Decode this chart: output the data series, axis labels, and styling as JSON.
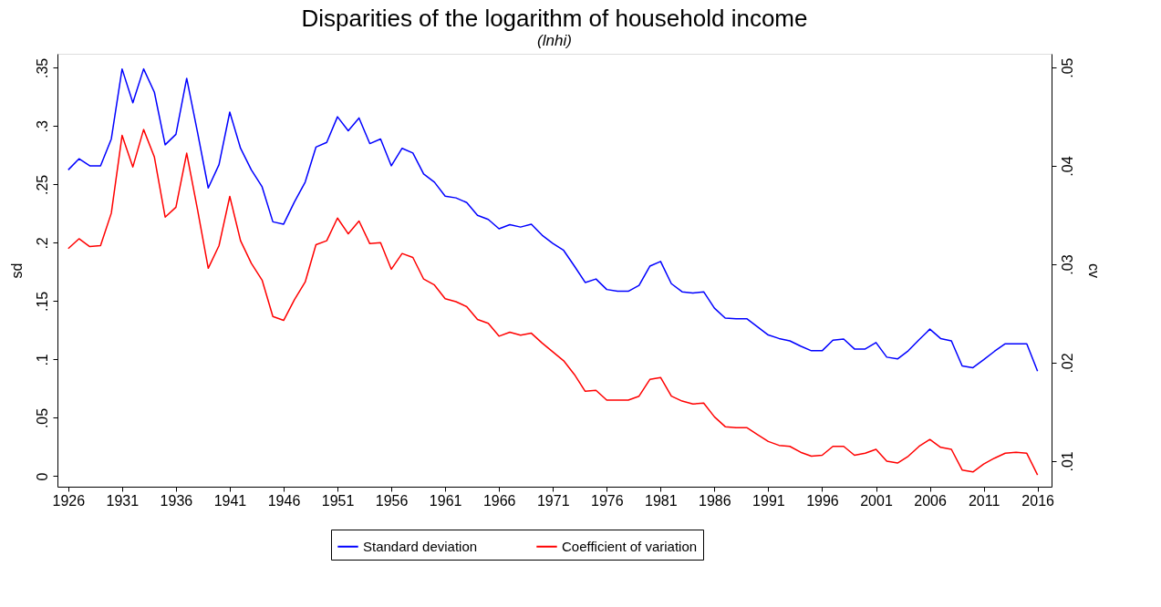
{
  "chart_data": {
    "type": "line",
    "title": "Disparities of the logarithm of household income",
    "subtitle": "(lnhi)",
    "ylabel": "sd",
    "y2label": "cv",
    "x": [
      1926,
      1927,
      1928,
      1929,
      1930,
      1931,
      1932,
      1933,
      1934,
      1935,
      1936,
      1937,
      1938,
      1939,
      1940,
      1941,
      1942,
      1943,
      1944,
      1945,
      1946,
      1947,
      1948,
      1949,
      1950,
      1951,
      1952,
      1953,
      1954,
      1955,
      1956,
      1957,
      1958,
      1959,
      1960,
      1961,
      1962,
      1963,
      1964,
      1965,
      1966,
      1967,
      1968,
      1969,
      1970,
      1971,
      1972,
      1973,
      1974,
      1975,
      1976,
      1977,
      1978,
      1979,
      1980,
      1981,
      1982,
      1983,
      1984,
      1985,
      1986,
      1987,
      1988,
      1989,
      1990,
      1991,
      1992,
      1993,
      1994,
      1995,
      1996,
      1997,
      1998,
      1999,
      2000,
      2001,
      2002,
      2003,
      2004,
      2005,
      2006,
      2007,
      2008,
      2009,
      2010,
      2011,
      2012,
      2013,
      2014,
      2015,
      2016
    ],
    "series": [
      {
        "name": "Standard deviation",
        "color": "#0000ff",
        "values": [
          0.2625,
          0.272,
          0.266,
          0.266,
          0.289,
          0.349,
          0.32,
          0.349,
          0.329,
          0.284,
          0.293,
          0.341,
          0.295,
          0.247,
          0.267,
          0.312,
          0.281,
          0.2625,
          0.248,
          0.218,
          0.216,
          0.235,
          0.252,
          0.282,
          0.286,
          0.308,
          0.296,
          0.307,
          0.285,
          0.289,
          0.266,
          0.281,
          0.277,
          0.259,
          0.252,
          0.24,
          0.2385,
          0.2345,
          0.2235,
          0.22,
          0.212,
          0.2155,
          0.2135,
          0.216,
          0.2065,
          0.1995,
          0.1935,
          0.18,
          0.166,
          0.169,
          0.16,
          0.1585,
          0.1585,
          0.1635,
          0.18,
          0.184,
          0.165,
          0.158,
          0.157,
          0.158,
          0.144,
          0.1355,
          0.135,
          0.135,
          0.128,
          0.121,
          0.118,
          0.116,
          0.1115,
          0.1075,
          0.1075,
          0.1165,
          0.1175,
          0.109,
          0.109,
          0.1145,
          0.102,
          0.1005,
          0.1075,
          0.117,
          0.126,
          0.118,
          0.116,
          0.0945,
          0.093,
          0.0998,
          0.107,
          0.1135,
          0.1135,
          0.1135,
          0.09
        ]
      },
      {
        "name": "Coefficient of variation",
        "color": "#ff0000",
        "axis": "y2",
        "values": [
          0.0316,
          0.0326,
          0.0318,
          0.0319,
          0.0352,
          0.0431,
          0.0399,
          0.0437,
          0.0409,
          0.0348,
          0.0358,
          0.0413,
          0.0356,
          0.0296,
          0.0319,
          0.0369,
          0.0324,
          0.0301,
          0.0284,
          0.0247,
          0.0243,
          0.0264,
          0.0282,
          0.032,
          0.0324,
          0.0347,
          0.0331,
          0.0344,
          0.0321,
          0.0322,
          0.0295,
          0.0311,
          0.0307,
          0.0285,
          0.0279,
          0.0265,
          0.0262,
          0.0257,
          0.0244,
          0.024,
          0.0227,
          0.0231,
          0.0228,
          0.023,
          0.022,
          0.0211,
          0.0202,
          0.0188,
          0.0171,
          0.0172,
          0.0162,
          0.0162,
          0.0162,
          0.0166,
          0.0183,
          0.0185,
          0.0166,
          0.0161,
          0.0158,
          0.0159,
          0.0145,
          0.0135,
          0.0134,
          0.0134,
          0.0127,
          0.012,
          0.0116,
          0.0115,
          0.0109,
          0.0105,
          0.0106,
          0.0115,
          0.0115,
          0.0106,
          0.0108,
          0.0112,
          0.01,
          0.0098,
          0.0105,
          0.0115,
          0.0122,
          0.0114,
          0.0112,
          0.0091,
          0.0089,
          0.0097,
          0.0103,
          0.0108,
          0.0109,
          0.0108,
          0.0086
        ]
      }
    ],
    "xlim": [
      1925,
      2017.3
    ],
    "xticks": [
      1926,
      1931,
      1936,
      1941,
      1946,
      1951,
      1956,
      1961,
      1966,
      1971,
      1976,
      1981,
      1986,
      1991,
      1996,
      2001,
      2006,
      2011,
      2016
    ],
    "ylim": [
      -0.009,
      0.362
    ],
    "yticks": [
      0,
      {
        "value": 0.05,
        "label": ".05"
      },
      {
        "value": 0.1,
        "label": ".1"
      },
      {
        "value": 0.15,
        "label": ".15"
      },
      {
        "value": 0.2,
        "label": ".2"
      },
      {
        "value": 0.25,
        "label": ".25"
      },
      {
        "value": 0.3,
        "label": ".3"
      },
      {
        "value": 0.35,
        "label": ".35"
      }
    ],
    "y2lim": [
      0.0074,
      0.0514
    ],
    "y2ticks": [
      {
        "value": 0.01,
        "label": ".01"
      },
      {
        "value": 0.02,
        "label": ".02"
      },
      {
        "value": 0.03,
        "label": ".03"
      },
      {
        "value": 0.04,
        "label": ".04"
      },
      {
        "value": 0.05,
        "label": ".05"
      }
    ],
    "legend": "bottom",
    "grid": false,
    "line_style": "solid"
  }
}
